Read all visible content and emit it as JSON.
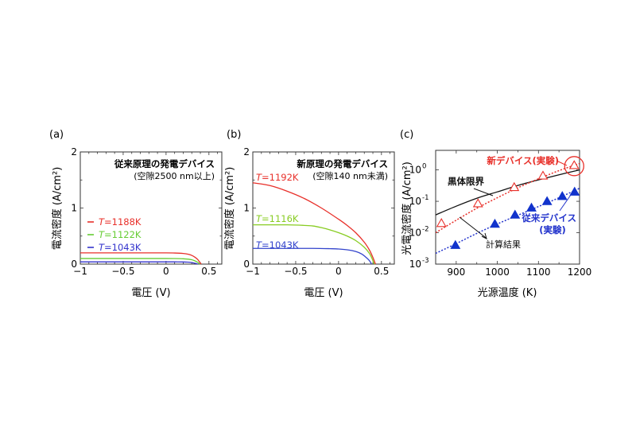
{
  "chart_data": [
    {
      "id": "a",
      "type": "line",
      "panel_label": "(a)",
      "title": "従来原理の発電デバイス",
      "subtitle": "(空隙2500 nm以上)",
      "xlabel": "電圧 (V)",
      "ylabel": "電流密度 (A/cm²)",
      "xlim": [
        -1,
        0.65
      ],
      "ylim": [
        0,
        2
      ],
      "xticks": [
        -1,
        -0.5,
        0,
        0.5
      ],
      "xtick_labels": [
        "−1",
        "−0.5",
        "0",
        "0.5"
      ],
      "yticks": [
        0,
        1,
        2
      ],
      "ytick_labels": [
        "0",
        "1",
        "2"
      ],
      "legend_placement": "left",
      "series": [
        {
          "name": "T=1188K",
          "label_prefix": "T",
          "label_suffix": "=1188K",
          "color": "#e8302a",
          "x": [
            -1,
            -0.5,
            0,
            0.1,
            0.2,
            0.26,
            0.3,
            0.34,
            0.37,
            0.39,
            0.41
          ],
          "y": [
            0.2,
            0.2,
            0.2,
            0.198,
            0.19,
            0.175,
            0.155,
            0.12,
            0.08,
            0.04,
            0.0
          ]
        },
        {
          "name": "T=1122K",
          "label_prefix": "T",
          "label_suffix": "=1122K",
          "color": "#66cc33",
          "x": [
            -1,
            -0.5,
            0,
            0.1,
            0.2,
            0.26,
            0.3,
            0.33,
            0.36,
            0.38,
            0.395
          ],
          "y": [
            0.1,
            0.1,
            0.1,
            0.099,
            0.095,
            0.088,
            0.078,
            0.062,
            0.04,
            0.02,
            0.0
          ]
        },
        {
          "name": "T=1043K",
          "label_prefix": "T",
          "label_suffix": "=1043K",
          "color": "#3333cc",
          "x": [
            -1,
            -0.5,
            0,
            0.1,
            0.2,
            0.25,
            0.29,
            0.32,
            0.35,
            0.37
          ],
          "y": [
            0.04,
            0.04,
            0.04,
            0.04,
            0.038,
            0.035,
            0.03,
            0.022,
            0.01,
            0.0
          ]
        }
      ]
    },
    {
      "id": "b",
      "type": "line",
      "panel_label": "(b)",
      "title": "新原理の発電デバイス",
      "subtitle": "(空隙140 nm未満)",
      "xlabel": "電圧 (V)",
      "ylabel": "電流密度 (A/cm²)",
      "xlim": [
        -1,
        0.65
      ],
      "ylim": [
        0,
        2
      ],
      "xticks": [
        -1,
        -0.5,
        0,
        0.5
      ],
      "xtick_labels": [
        "−1",
        "−0.5",
        "0",
        "0.5"
      ],
      "yticks": [
        0,
        1,
        2
      ],
      "ytick_labels": [
        "0",
        "1",
        "2"
      ],
      "series": [
        {
          "name": "T=1192K",
          "label_prefix": "T",
          "label_suffix": "=1192K",
          "color": "#e8302a",
          "x": [
            -1,
            -0.8,
            -0.6,
            -0.4,
            -0.2,
            0,
            0.1,
            0.2,
            0.3,
            0.36,
            0.4,
            0.43
          ],
          "y": [
            1.45,
            1.4,
            1.3,
            1.17,
            1.0,
            0.8,
            0.69,
            0.56,
            0.39,
            0.25,
            0.12,
            0.0
          ]
        },
        {
          "name": "T=1116K",
          "label_prefix": "T",
          "label_suffix": "=1116K",
          "color": "#88cc22",
          "x": [
            -1,
            -0.8,
            -0.6,
            -0.4,
            -0.3,
            -0.2,
            -0.1,
            0,
            0.1,
            0.2,
            0.3,
            0.36,
            0.39,
            0.415
          ],
          "y": [
            0.7,
            0.7,
            0.7,
            0.69,
            0.68,
            0.65,
            0.61,
            0.56,
            0.5,
            0.42,
            0.3,
            0.19,
            0.1,
            0.0
          ]
        },
        {
          "name": "T=1043K",
          "label_prefix": "T",
          "label_suffix": "=1043K",
          "color": "#3344cc",
          "x": [
            -1,
            -0.6,
            -0.3,
            -0.1,
            0,
            0.1,
            0.2,
            0.27,
            0.32,
            0.36,
            0.385
          ],
          "y": [
            0.28,
            0.28,
            0.28,
            0.275,
            0.27,
            0.255,
            0.225,
            0.18,
            0.12,
            0.06,
            0.0
          ]
        }
      ]
    },
    {
      "id": "c",
      "type": "scatter",
      "panel_label": "(c)",
      "xlabel": "光源温度 (K)",
      "ylabel": "光電流密度 (A/cm²)",
      "xlim": [
        850,
        1200
      ],
      "ylim": [
        0.001,
        4.2
      ],
      "yscale": "log",
      "xticks": [
        900,
        1000,
        1100,
        1200
      ],
      "xtick_labels": [
        "900",
        "1000",
        "1100",
        "1200"
      ],
      "yticks": [
        0.001,
        0.01,
        0.1,
        1
      ],
      "ytick_exponents": [
        "-3",
        "-2",
        "-1",
        "0"
      ],
      "series": [
        {
          "name": "黒体限界",
          "kind": "line",
          "color": "#111111",
          "x": [
            850,
            900,
            950,
            1000,
            1050,
            1100,
            1150,
            1200
          ],
          "y": [
            0.037,
            0.07,
            0.125,
            0.2,
            0.32,
            0.48,
            0.7,
            1.0
          ]
        },
        {
          "name": "計算結果 (新デバイス)",
          "kind": "dotted",
          "color": "#e8302a",
          "x": [
            850,
            900,
            950,
            1000,
            1050,
            1100,
            1150,
            1200
          ],
          "y": [
            0.01,
            0.025,
            0.06,
            0.13,
            0.27,
            0.52,
            0.95,
            1.6
          ]
        },
        {
          "name": "計算結果 (従来デバイス)",
          "kind": "dotted",
          "color": "#2233cc",
          "x": [
            850,
            900,
            950,
            1000,
            1050,
            1100,
            1150,
            1200
          ],
          "y": [
            0.0022,
            0.0045,
            0.0095,
            0.019,
            0.036,
            0.068,
            0.13,
            0.26
          ]
        },
        {
          "name": "新デバイス(実験)",
          "kind": "open-triangle",
          "color": "#e8302a",
          "x": [
            864,
            953,
            1041,
            1111,
            1187
          ],
          "y": [
            0.02,
            0.085,
            0.28,
            0.65,
            1.4
          ]
        },
        {
          "name": "従来デバイス(実験)",
          "kind": "filled-triangle",
          "color": "#1133cc",
          "x": [
            898,
            994,
            1043,
            1083,
            1121,
            1158,
            1188
          ],
          "y": [
            0.004,
            0.019,
            0.037,
            0.062,
            0.1,
            0.145,
            0.2
          ]
        }
      ],
      "annotations": [
        {
          "text": "新デバイス(実験)",
          "color": "#e8302a"
        },
        {
          "text": "黒体限界",
          "color": "#111111"
        },
        {
          "text": "計算結果",
          "color": "#111111"
        },
        {
          "text": "従来デバイス",
          "color": "#2233cc"
        },
        {
          "text": "(実験)",
          "color": "#2233cc"
        }
      ]
    }
  ]
}
